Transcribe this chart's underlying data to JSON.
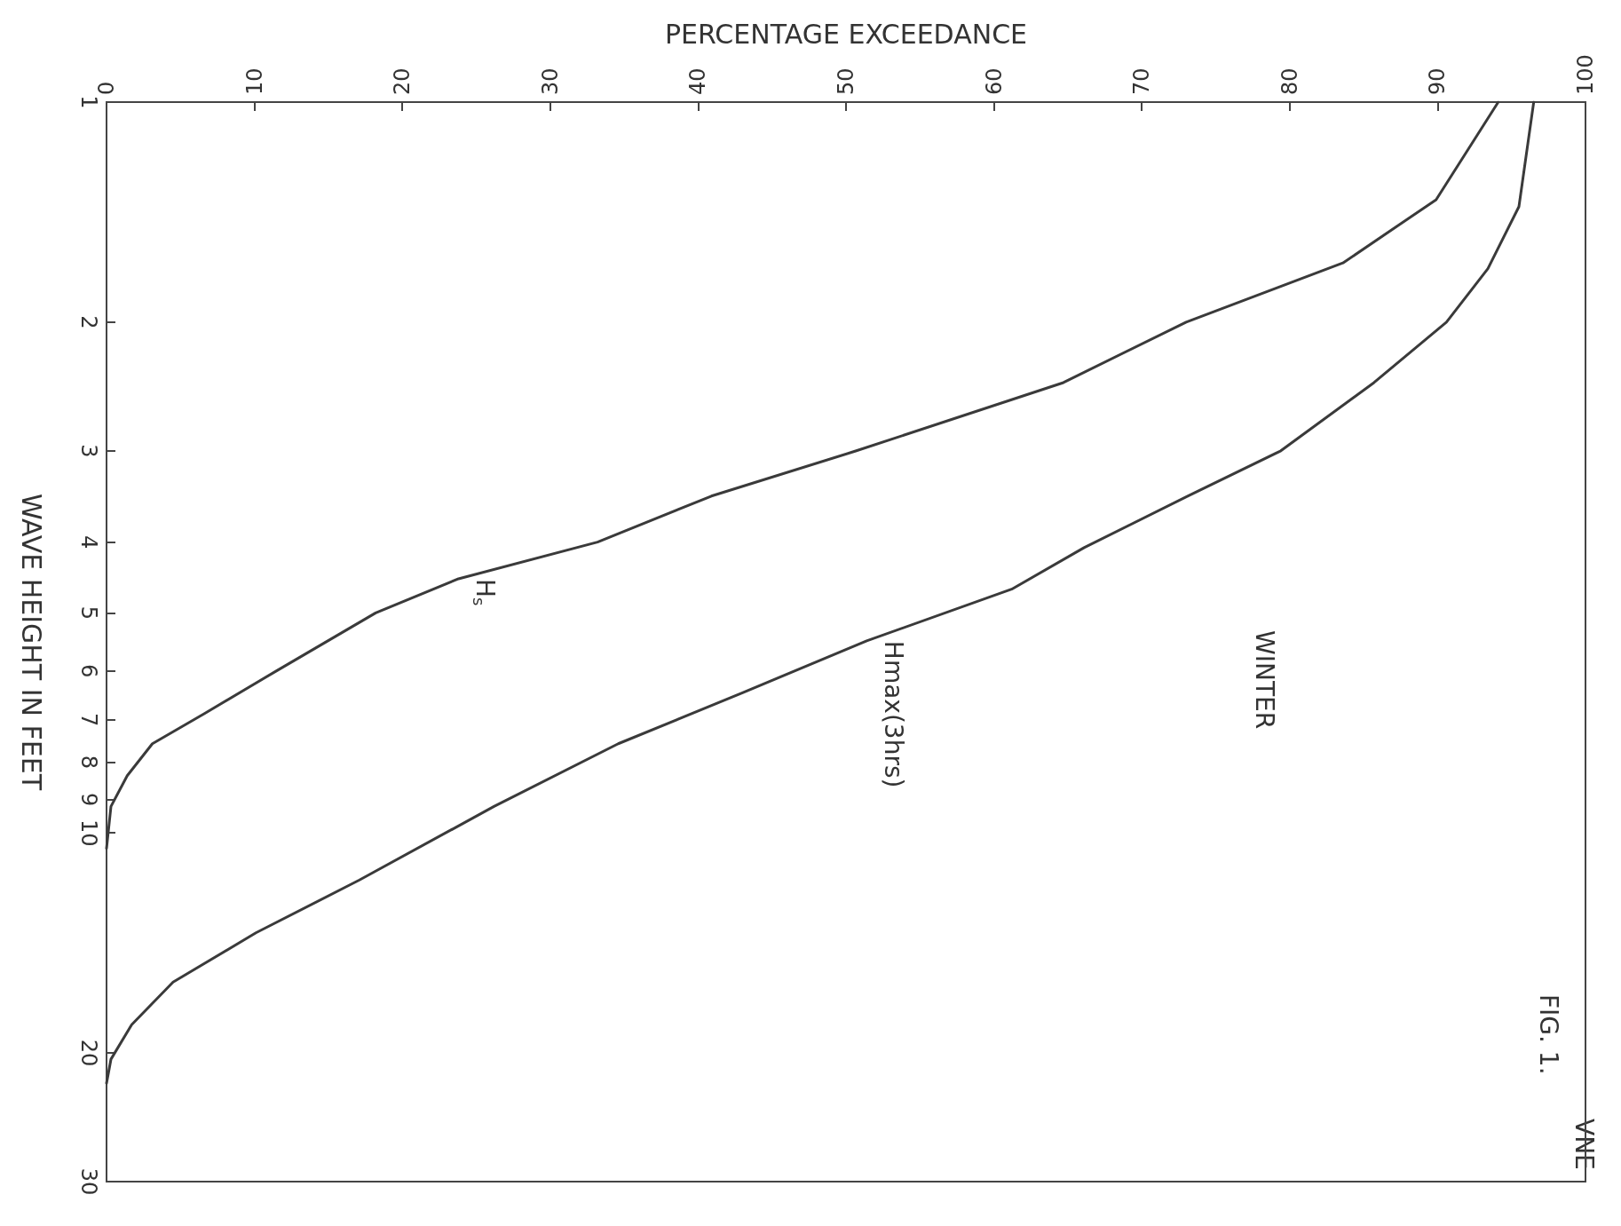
{
  "chart_data": {
    "type": "line",
    "xlabel": "PERCENTAGE EXCEEDANCE",
    "ylabel": "WAVE HEIGHT IN FEET",
    "annotations": [
      "WINTER",
      "FIG. 1.",
      "VNE"
    ],
    "xlim": [
      0,
      100
    ],
    "xticks": [
      0,
      10,
      20,
      30,
      40,
      50,
      60,
      70,
      80,
      90,
      100
    ],
    "ylim": [
      30,
      1
    ],
    "yticks": [
      1,
      2,
      3,
      4,
      5,
      6,
      7,
      8,
      9,
      10,
      20,
      30
    ],
    "log": "y",
    "grid": false,
    "legend": false,
    "marker": "none",
    "line_style": "solid",
    "series": [
      {
        "name": "H$_{s}$",
        "color": "#3a3a3a",
        "x": [
          94.1,
          89.9,
          83.6,
          73,
          64.7,
          50.7,
          40.9,
          33.2,
          23.8,
          18.2,
          11.5,
          6.6,
          3.1,
          1.4,
          0.3,
          0
        ],
        "values": [
          1,
          1.36,
          1.66,
          2,
          2.42,
          3,
          3.46,
          4,
          4.49,
          5,
          6,
          6.87,
          7.55,
          8.35,
          9.2,
          10.5
        ]
      },
      {
        "name": "Hmax(3hrs)",
        "color": "#3a3a3a",
        "x": [
          96.5,
          95.5,
          93.4,
          90.6,
          85.7,
          79.4,
          73.1,
          66.1,
          61.2,
          51.4,
          43,
          34.6,
          26.2,
          17.1,
          10.1,
          4.5,
          1.7,
          0.3,
          0
        ],
        "values": [
          1,
          1.39,
          1.69,
          2,
          2.42,
          3,
          3.46,
          4.07,
          4.64,
          5.46,
          6.43,
          7.55,
          9.2,
          11.6,
          13.7,
          16,
          18.3,
          20.4,
          22
        ]
      }
    ]
  }
}
